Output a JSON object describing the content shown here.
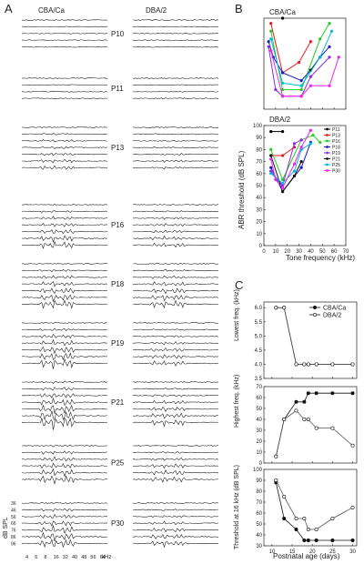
{
  "panel_labels": {
    "a": "A",
    "b": "B",
    "c": "C"
  },
  "panel_a": {
    "col_left": "CBA/Ca",
    "col_right": "DBA/2",
    "ages": [
      "P10",
      "P11",
      "P13",
      "P16",
      "P18",
      "P19",
      "P21",
      "P25",
      "P30"
    ],
    "db_axis_title": "dB SPL",
    "db_levels": [
      "36",
      "46",
      "56",
      "66",
      "76",
      "86",
      "96"
    ],
    "freq_ticks": [
      "4",
      "6",
      "8",
      "16",
      "32",
      "40",
      "48",
      "56",
      "64"
    ],
    "freq_unit": "kHz"
  },
  "chart_data": [
    {
      "type": "line",
      "panel": "B-top",
      "title": "CBA/Ca",
      "xlim": [
        0,
        70
      ],
      "series": [
        {
          "name": "P11",
          "color": "#000000",
          "points": [
            [
              16,
              100
            ]
          ]
        },
        {
          "name": "P13",
          "color": "#e8191b",
          "points": [
            [
              6,
              96
            ],
            [
              16,
              58
            ],
            [
              30,
              66
            ],
            [
              40,
              82
            ]
          ]
        },
        {
          "name": "P16",
          "color": "#22cc22",
          "points": [
            [
              6,
              90
            ],
            [
              16,
              45
            ],
            [
              32,
              45
            ],
            [
              48,
              84
            ],
            [
              56,
              96
            ]
          ]
        },
        {
          "name": "P18",
          "color": "#1a1acc",
          "points": [
            [
              4,
              82
            ],
            [
              8,
              70
            ],
            [
              16,
              58
            ],
            [
              32,
              52
            ],
            [
              40,
              60
            ],
            [
              48,
              70
            ],
            [
              56,
              78
            ]
          ]
        },
        {
          "name": "P19",
          "color": "#8a2be2",
          "points": [
            [
              4,
              78
            ],
            [
              10,
              45
            ],
            [
              16,
              40
            ],
            [
              32,
              40
            ],
            [
              40,
              55
            ],
            [
              56,
              70
            ]
          ]
        },
        {
          "name": "P21",
          "color": "#111111",
          "points": [
            [
              40,
              60
            ],
            [
              48,
              70
            ]
          ]
        },
        {
          "name": "P25",
          "color": "#00bbdd",
          "points": [
            [
              6,
              84
            ],
            [
              16,
              50
            ],
            [
              32,
              48
            ],
            [
              48,
              70
            ],
            [
              58,
              90
            ]
          ]
        },
        {
          "name": "P30",
          "color": "#ee22ee",
          "points": [
            [
              6,
              75
            ],
            [
              16,
              40
            ],
            [
              32,
              40
            ],
            [
              40,
              48
            ],
            [
              56,
              48
            ],
            [
              64,
              70
            ]
          ]
        }
      ]
    },
    {
      "type": "line",
      "panel": "B-bottom",
      "title": "DBA/2",
      "xlabel": "Tone frequency (kHz)",
      "ylabel": "ABR threshold (dB SPL)",
      "xlim": [
        0,
        70
      ],
      "ylim": [
        0,
        100
      ],
      "xticks": [
        0,
        10,
        20,
        30,
        40,
        50,
        60,
        70
      ],
      "yticks": [
        0,
        10,
        20,
        30,
        40,
        50,
        60,
        70,
        80,
        90,
        100
      ],
      "legend_position": "right",
      "series": [
        {
          "name": "P11",
          "color": "#000000",
          "points": [
            [
              6,
              95
            ],
            [
              16,
              95
            ]
          ]
        },
        {
          "name": "P13",
          "color": "#e8191b",
          "points": [
            [
              6,
              75
            ],
            [
              16,
              75
            ],
            [
              26,
              82
            ]
          ]
        },
        {
          "name": "P16",
          "color": "#22cc22",
          "points": [
            [
              6,
              80
            ],
            [
              16,
              55
            ],
            [
              32,
              88
            ],
            [
              42,
              92
            ],
            [
              48,
              86
            ]
          ]
        },
        {
          "name": "P18",
          "color": "#1a1acc",
          "points": [
            [
              6,
              65
            ],
            [
              16,
              45
            ],
            [
              32,
              65
            ],
            [
              40,
              86
            ]
          ]
        },
        {
          "name": "P19",
          "color": "#8a2be2",
          "points": [
            [
              6,
              62
            ],
            [
              16,
              50
            ],
            [
              26,
              85
            ],
            [
              32,
              88
            ]
          ]
        },
        {
          "name": "P21",
          "color": "#111111",
          "points": [
            [
              6,
              75
            ],
            [
              16,
              45
            ],
            [
              26,
              58
            ],
            [
              32,
              70
            ]
          ]
        },
        {
          "name": "P25",
          "color": "#00bbdd",
          "points": [
            [
              6,
              60
            ],
            [
              16,
              52
            ],
            [
              26,
              62
            ],
            [
              32,
              80
            ],
            [
              40,
              85
            ]
          ]
        },
        {
          "name": "P30",
          "color": "#ee22ee",
          "points": [
            [
              6,
              72
            ],
            [
              10,
              55
            ],
            [
              16,
              48
            ],
            [
              26,
              68
            ],
            [
              32,
              82
            ],
            [
              40,
              96
            ]
          ]
        }
      ]
    },
    {
      "type": "line",
      "panel": "C-1",
      "ylabel": "Lowest freq. (kHz)",
      "ylim": [
        3.5,
        6.2
      ],
      "yticks": [
        3.5,
        4.0,
        4.5,
        5.0,
        5.5,
        6.0
      ],
      "xlim": [
        8,
        31
      ],
      "legend_position": "top-right",
      "series": [
        {
          "name": "CBA/Ca",
          "marker": "filled",
          "x": [
            11,
            13,
            16,
            18,
            19,
            21,
            25,
            30
          ],
          "y": [
            6.0,
            6.0,
            4.0,
            4.0,
            4.0,
            4.0,
            4.0,
            4.0
          ]
        },
        {
          "name": "DBA/2",
          "marker": "open",
          "x": [
            11,
            13,
            16,
            18,
            19,
            21,
            25,
            30
          ],
          "y": [
            6.0,
            6.0,
            4.0,
            4.0,
            4.0,
            4.0,
            4.0,
            4.0
          ]
        }
      ]
    },
    {
      "type": "line",
      "panel": "C-2",
      "ylabel": "Highest freq. (kHz)",
      "ylim": [
        0,
        70
      ],
      "yticks": [
        0,
        10,
        20,
        30,
        40,
        50,
        60,
        70
      ],
      "xlim": [
        8,
        31
      ],
      "series": [
        {
          "name": "CBA/Ca",
          "marker": "filled",
          "x": [
            11,
            13,
            16,
            18,
            19,
            21,
            25,
            30
          ],
          "y": [
            6,
            40,
            56,
            56,
            64,
            64,
            64,
            64
          ]
        },
        {
          "name": "DBA/2",
          "marker": "open",
          "x": [
            11,
            13,
            16,
            18,
            19,
            21,
            25,
            30
          ],
          "y": [
            6,
            40,
            48,
            40,
            40,
            32,
            32,
            16
          ]
        }
      ]
    },
    {
      "type": "line",
      "panel": "C-3",
      "ylabel": "Threshold at 16 kHz (dB SPL)",
      "xlabel": "Postnatal age (days)",
      "ylim": [
        30,
        100
      ],
      "yticks": [
        30,
        40,
        50,
        60,
        70,
        80,
        90,
        100
      ],
      "xlim": [
        8,
        31
      ],
      "xticks": [
        10,
        15,
        20,
        25,
        30
      ],
      "series": [
        {
          "name": "CBA/Ca",
          "marker": "filled",
          "x": [
            11,
            13,
            16,
            18,
            19,
            21,
            25,
            30
          ],
          "y": [
            88,
            55,
            45,
            35,
            35,
            35,
            35,
            35
          ]
        },
        {
          "name": "DBA/2",
          "marker": "open",
          "x": [
            11,
            13,
            16,
            18,
            19,
            21,
            25,
            30
          ],
          "y": [
            90,
            75,
            55,
            55,
            45,
            45,
            55,
            65
          ]
        }
      ]
    }
  ]
}
